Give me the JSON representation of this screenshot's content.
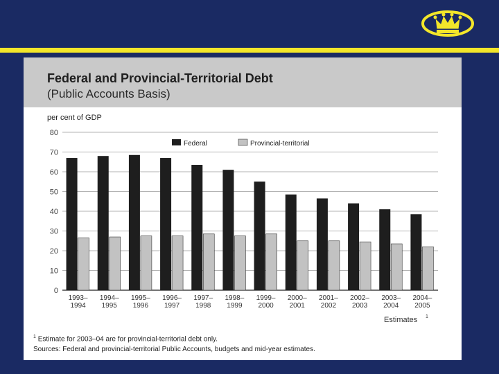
{
  "colors": {
    "background": "#1a2a63",
    "rule": "#f3e62a",
    "federal": "#1e1e1e",
    "provincial": "#c2c2c2",
    "logo": "#f3e62a"
  },
  "logo": {
    "icon": "crown-icon"
  },
  "chart_data": {
    "type": "bar",
    "title": "Federal and Provincial-Territorial Debt",
    "subtitle": "(Public Accounts Basis)",
    "ylabel": "per cent of GDP",
    "ylim": [
      0,
      80
    ],
    "yticks": [
      0,
      10,
      20,
      30,
      40,
      50,
      60,
      70,
      80
    ],
    "grid": true,
    "legend_position": "top-center",
    "categories": [
      [
        "1993–",
        "1994"
      ],
      [
        "1994–",
        "1995"
      ],
      [
        "1995–",
        "1996"
      ],
      [
        "1996–",
        "1997"
      ],
      [
        "1997–",
        "1998"
      ],
      [
        "1998–",
        "1999"
      ],
      [
        "1999–",
        "2000"
      ],
      [
        "2000–",
        "2001"
      ],
      [
        "2001–",
        "2002"
      ],
      [
        "2002–",
        "2003"
      ],
      [
        "2003–",
        "2004"
      ],
      [
        "2004–",
        "2005"
      ]
    ],
    "series": [
      {
        "name": "Federal",
        "values": [
          67,
          68,
          68.5,
          67,
          63.5,
          61,
          55,
          48.5,
          46.5,
          44,
          41,
          38.5
        ]
      },
      {
        "name": "Provincial-territorial",
        "values": [
          26.5,
          27,
          27.5,
          27.5,
          28.5,
          27.5,
          28.5,
          25,
          25,
          24.5,
          23.5,
          22
        ]
      }
    ],
    "xlabel_note": "Estimates",
    "xlabel_note_marker": "1"
  },
  "footnotes": {
    "marker": "1",
    "note": "Estimate for 2003–04 are for provincial-territorial debt only.",
    "sources": "Sources: Federal and provincial-territorial Public Accounts, budgets and mid-year estimates."
  }
}
